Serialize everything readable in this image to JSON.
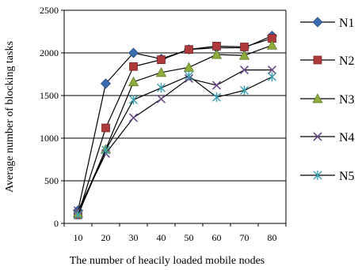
{
  "chart_data": {
    "type": "line",
    "title": "",
    "xlabel": "The number of heacily loaded mobile nodes",
    "ylabel": "Average number of blocking tasks",
    "x": [
      10,
      20,
      30,
      40,
      50,
      60,
      70,
      80
    ],
    "ylim": [
      0,
      2500
    ],
    "yticks": [
      0,
      500,
      1000,
      1500,
      2000,
      2500
    ],
    "grid": "horizontal",
    "legend_position": "right",
    "series": [
      {
        "name": "N1",
        "marker": "diamond",
        "color": "#3a6cb0",
        "values": [
          150,
          1640,
          2000,
          1930,
          2040,
          2060,
          2060,
          2200
        ]
      },
      {
        "name": "N2",
        "marker": "square",
        "color": "#b03a3a",
        "values": [
          100,
          1120,
          1840,
          1920,
          2040,
          2080,
          2070,
          2170
        ]
      },
      {
        "name": "N3",
        "marker": "triangle",
        "color": "#8cac3c",
        "values": [
          120,
          870,
          1660,
          1770,
          1830,
          1980,
          1970,
          2090
        ]
      },
      {
        "name": "N4",
        "marker": "x",
        "color": "#6a4a8a",
        "values": [
          150,
          820,
          1240,
          1460,
          1700,
          1620,
          1800,
          1800
        ]
      },
      {
        "name": "N5",
        "marker": "asterisk",
        "color": "#3aa0b0",
        "values": [
          100,
          860,
          1450,
          1590,
          1730,
          1480,
          1560,
          1720
        ]
      }
    ]
  }
}
